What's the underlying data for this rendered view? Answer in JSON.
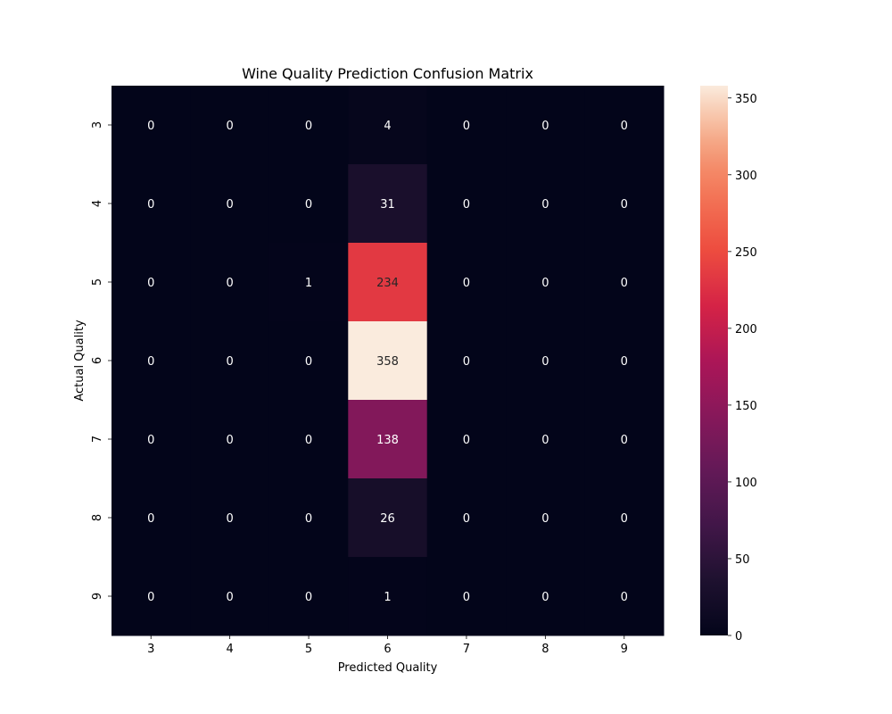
{
  "chart_data": {
    "type": "heatmap",
    "title": "Wine Quality Prediction Confusion Matrix",
    "xlabel": "Predicted Quality",
    "ylabel": "Actual Quality",
    "x_categories": [
      "3",
      "4",
      "5",
      "6",
      "7",
      "8",
      "9"
    ],
    "y_categories": [
      "3",
      "4",
      "5",
      "6",
      "7",
      "8",
      "9"
    ],
    "values": [
      [
        0,
        0,
        0,
        4,
        0,
        0,
        0
      ],
      [
        0,
        0,
        0,
        31,
        0,
        0,
        0
      ],
      [
        0,
        0,
        1,
        234,
        0,
        0,
        0
      ],
      [
        0,
        0,
        0,
        358,
        0,
        0,
        0
      ],
      [
        0,
        0,
        0,
        138,
        0,
        0,
        0
      ],
      [
        0,
        0,
        0,
        26,
        0,
        0,
        0
      ],
      [
        0,
        0,
        0,
        1,
        0,
        0,
        0
      ]
    ],
    "colorbar": {
      "min": 0,
      "max": 358,
      "ticks": [
        0,
        50,
        100,
        150,
        200,
        250,
        300,
        350
      ],
      "colormap": "rocket",
      "position": "right"
    },
    "grid": false,
    "annotations": true
  }
}
